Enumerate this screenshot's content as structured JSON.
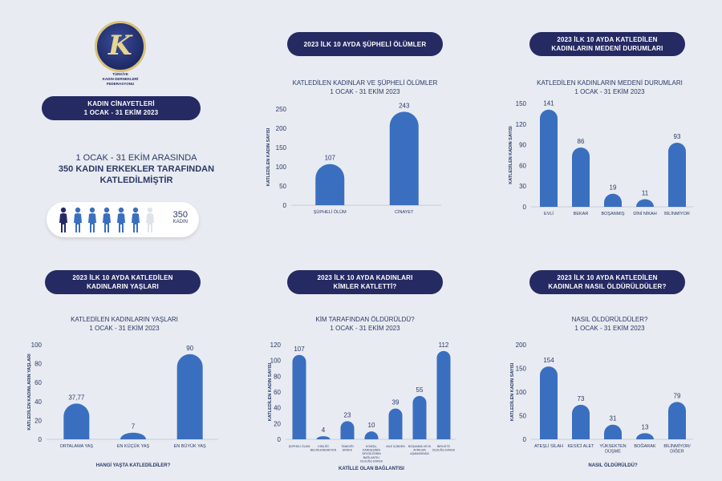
{
  "logo": {
    "text_lines": [
      "TÜRKİYE",
      "KADIN DERNEKLERİ",
      "FEDERASYONU"
    ]
  },
  "header_left": {
    "line1": "KADIN CİNAYETLERİ",
    "line2": "1 OCAK - 31 EKİM 2023"
  },
  "summary": {
    "line1": "1 OCAK - 31 EKİM ARASINDA",
    "line2": "350 KADIN ERKEKLER TARAFINDAN",
    "line3": "KATLEDİLMİŞTİR"
  },
  "people": {
    "count": "350",
    "unit": "KADIN",
    "colors": [
      "#262a63",
      "#3a6fc0",
      "#dfe3ea"
    ]
  },
  "panels": {
    "p1": {
      "pill1": "2023 İLK 10 AYDA ŞÜPHELİ ÖLÜMLER",
      "pill2": "",
      "title1": "KATLEDİLEN KADINLAR VE ŞÜPHELİ ÖLÜMLER",
      "title2": "1 OCAK - 31 EKİM 2023"
    },
    "p2": {
      "pill1": "2023 İLK 10 AYDA KATLEDİLEN",
      "pill2": "KADINLARIN MEDENİ DURUMLARI",
      "title1": "KATLEDİLEN KADINLARIN MEDENİ DURUMLARI",
      "title2": "1 OCAK - 31 EKİM 2023"
    },
    "p3": {
      "pill1": "2023 İLK 10 AYDA  KATLEDİLEN",
      "pill2": "KADINLARIN YAŞLARI",
      "title1": "KATLEDİLEN KADINLARIN YAŞLARI",
      "title2": "1 OCAK - 31 EKİM 2023"
    },
    "p4": {
      "pill1": "2023 İLK 10 AYDA KADINLARI",
      "pill2": "KİMLER KATLETTİ?",
      "title1": "KİM TARAFINDAN ÖLDÜRÜLDÜ?",
      "title2": "1 OCAK - 31 EKİM 2023"
    },
    "p5": {
      "pill1": "2023 İLK 10 AYDA KATLEDİLEN",
      "pill2": "KADINLAR NASIL ÖLDÜRÜLDÜLER?",
      "title1": "NASIL ÖLDÜRÜLDÜLER?",
      "title2": "1 OCAK - 31 EKİM 2023"
    }
  },
  "chart_data": [
    {
      "type": "bar",
      "categories": [
        "ŞÜPHELİ ÖLÜM",
        "CİNAYET"
      ],
      "values": [
        107,
        243
      ],
      "value_labels": [
        "107",
        "243"
      ],
      "ylabel": "KATLEDİLEN KADIN SAYISI",
      "xlabel": "",
      "ylim": [
        0,
        250
      ],
      "yticks": [
        0,
        50,
        100,
        150,
        200,
        250
      ],
      "bar_color": "#3a6fc0"
    },
    {
      "type": "bar",
      "categories": [
        "EVLİ",
        "BEKAR",
        "BOŞANMIŞ",
        "DİNİ NİKAH",
        "BİLİNMİYOR"
      ],
      "values": [
        141,
        86,
        19,
        11,
        93
      ],
      "value_labels": [
        "141",
        "86",
        "19",
        "11",
        "93"
      ],
      "ylabel": "KATLEDİLEN KADIN SAYISI",
      "xlabel": "",
      "ylim": [
        0,
        150
      ],
      "yticks": [
        0,
        30,
        60,
        90,
        120,
        150
      ],
      "bar_color": "#3a6fc0"
    },
    {
      "type": "bar",
      "categories": [
        "ORTALAMA YAŞ",
        "EN KÜÇÜK YAŞ",
        "EN BÜYÜK YAŞ"
      ],
      "values": [
        37.77,
        7,
        90
      ],
      "value_labels": [
        "37,77",
        "7",
        "90"
      ],
      "ylabel": "KATLEDİLEN KADINLARIN YAŞLARI",
      "xlabel": "HANGİ YAŞTA KATLEDİLDİLER?",
      "ylim": [
        0,
        100
      ],
      "yticks": [
        0,
        20,
        40,
        60,
        80,
        100
      ],
      "bar_color": "#3a6fc0"
    },
    {
      "type": "bar",
      "categories": [
        "ŞÜPHELİ ÖLÜM",
        "KİMLİĞİ BELİRLENEMEYEN",
        "TANIDIĞI ERKEK",
        "KOMŞU, KARDEŞİNİN SEVGİLİSİNİN BAĞLANTILI OLDUĞU ERKEK",
        "AİLE İÇİNDEN",
        "BOŞANMA VEYA AYRILMA AŞAMASINDA",
        "BİRLİKTE OLDUĞU ERKEK"
      ],
      "values": [
        107,
        4,
        23,
        10,
        39,
        55,
        112
      ],
      "value_labels": [
        "107",
        "4",
        "23",
        "10",
        "39",
        "55",
        "112"
      ],
      "ylabel": "KATLEDİLEN KADIN SAYISI",
      "xlabel": "KATİLLE OLAN BAĞLANTISI",
      "ylim": [
        0,
        120
      ],
      "yticks": [
        0,
        20,
        40,
        60,
        80,
        100,
        120
      ],
      "bar_color": "#3a6fc0"
    },
    {
      "type": "bar",
      "categories": [
        "ATEŞLİ SİLAH",
        "KESİCİ ALET",
        "YÜKSEKTEN DÜŞME",
        "BOĞARAK",
        "BİLİNMİYOR/ DİĞER"
      ],
      "values": [
        154,
        73,
        31,
        13,
        79
      ],
      "value_labels": [
        "154",
        "73",
        "31",
        "13",
        "79"
      ],
      "ylabel": "KATLEDİLEN KADIN SAYISI",
      "xlabel": "NASIL ÖLDÜRÜLDÜ?",
      "ylim": [
        0,
        200
      ],
      "yticks": [
        0,
        50,
        100,
        150,
        200
      ],
      "bar_color": "#3a6fc0"
    }
  ]
}
